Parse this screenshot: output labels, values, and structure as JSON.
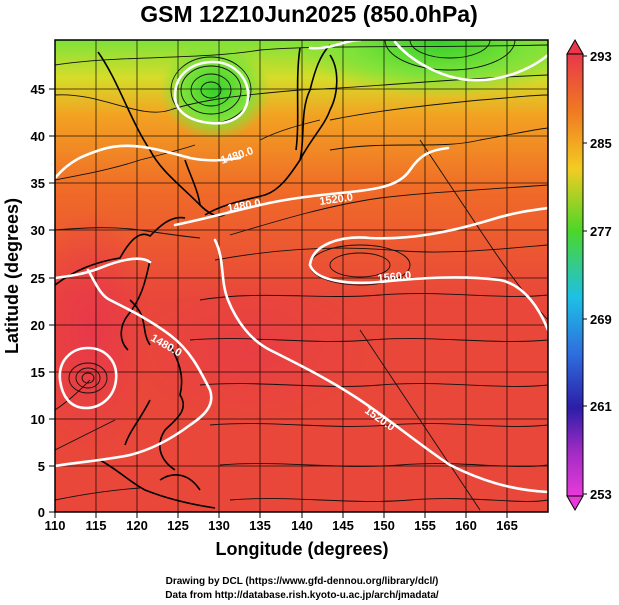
{
  "title": "GSM 12Z10Jun2025 (850.0hPa)",
  "map": {
    "xlabel": "Longitude (degrees)",
    "ylabel": "Latitude  (degrees)",
    "xlim": [
      110,
      170
    ],
    "ylim": [
      0,
      50
    ],
    "x_ticks": [
      "110",
      "115",
      "120",
      "125",
      "130",
      "135",
      "140",
      "145",
      "150",
      "155",
      "160",
      "165"
    ],
    "y_ticks": [
      "0",
      "5",
      "10",
      "15",
      "20",
      "25",
      "30",
      "35",
      "40",
      "45"
    ],
    "grid": true
  },
  "colorbar": {
    "labels": [
      "293",
      "285",
      "277",
      "269",
      "261",
      "253"
    ],
    "colors": [
      "#e8384a",
      "#f07a22",
      "#f3cc22",
      "#4cd62a",
      "#1ec0e6",
      "#2e6ddd",
      "#2b1ea8",
      "#a12bc4",
      "#e83ad8"
    ]
  },
  "contours": {
    "labels": [
      "1480.0",
      "1480.0",
      "1520.0",
      "1560.0",
      "1480.0",
      "1520.0"
    ]
  },
  "credits": {
    "line1": "Drawing by DCL (https://www.gfd-dennou.org/library/dcl/)",
    "line2": "Data from http://database.rish.kyoto-u.ac.jp/arch/jmadata/"
  }
}
